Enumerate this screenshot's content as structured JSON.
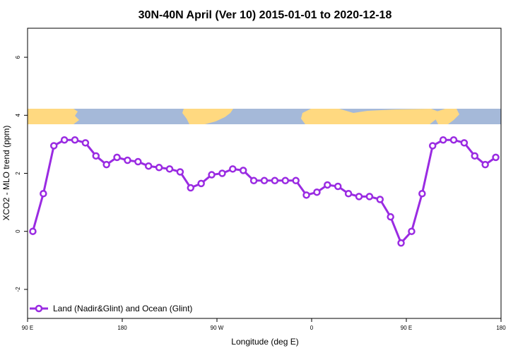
{
  "chart_data": {
    "type": "line",
    "title": "30N-40N April (Ver 10)   2015-01-01 to 2020-12-18",
    "xlabel": "Longitude (deg E)",
    "ylabel": "XCO2 - MLO trend (ppm)",
    "xlim": [
      90,
      540
    ],
    "ylim": [
      -3,
      7
    ],
    "x_ticks": [
      {
        "value": 90,
        "label": "90 E"
      },
      {
        "value": 180,
        "label": "180"
      },
      {
        "value": 270,
        "label": "90 W"
      },
      {
        "value": 360,
        "label": "0"
      },
      {
        "value": 450,
        "label": "90 E"
      },
      {
        "value": 540,
        "label": "180"
      }
    ],
    "y_ticks": [
      {
        "value": -2,
        "label": "-2"
      },
      {
        "value": 0,
        "label": "0"
      },
      {
        "value": 2,
        "label": "2"
      },
      {
        "value": 4,
        "label": "4"
      },
      {
        "value": 6,
        "label": "6"
      }
    ],
    "grid": false,
    "legend_position": "bottom-left",
    "series": [
      {
        "name": "Land (Nadir&Glint) and Ocean (Glint)",
        "color": "#9a2be2",
        "x": [
          95,
          105,
          115,
          125,
          135,
          145,
          155,
          165,
          175,
          185,
          195,
          205,
          215,
          225,
          235,
          245,
          255,
          265,
          275,
          285,
          295,
          305,
          315,
          325,
          335,
          345,
          355,
          365,
          375,
          385,
          395,
          405,
          415,
          425,
          435,
          445,
          455,
          465,
          475,
          485,
          495,
          505,
          515,
          525,
          535
        ],
        "y": [
          0.0,
          1.3,
          2.95,
          3.15,
          3.15,
          3.05,
          2.6,
          2.3,
          2.55,
          2.45,
          2.4,
          2.25,
          2.2,
          2.15,
          2.05,
          1.5,
          1.65,
          1.95,
          2.0,
          2.15,
          2.1,
          1.75,
          1.75,
          1.75,
          1.75,
          1.75,
          1.25,
          1.35,
          1.6,
          1.55,
          1.3,
          1.2,
          1.2,
          1.1,
          0.5,
          -0.4,
          0.0,
          1.3,
          2.95,
          3.15,
          3.15,
          3.05,
          2.6,
          2.3,
          2.55
        ]
      }
    ]
  },
  "colors": {
    "land": "#ffd980",
    "ocean": "#a5b9d9",
    "series": "#9a2be2"
  }
}
